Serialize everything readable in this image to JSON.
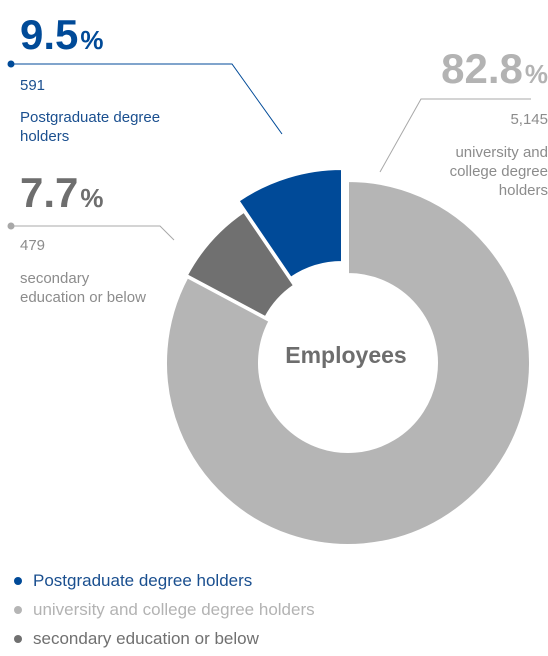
{
  "colors": {
    "postgraduate": "#004a98",
    "university": "#b5b5b5",
    "secondary": "#707070",
    "leader": "#a8a8a8",
    "center_text": "#6d6d6d",
    "blue_text": "#1a4f8f",
    "gray_text": "#8c8c8c",
    "dark_gray_text": "#6e6e6e"
  },
  "chart_data": {
    "type": "pie",
    "donut": true,
    "center_label": "Employees",
    "percent_symbol": "%",
    "slices": [
      {
        "label": "Postgraduate degree holders",
        "percent": "9.5",
        "count": "591",
        "value": 9.5
      },
      {
        "label": "university and college degree holders",
        "percent": "82.8",
        "count": "5,145",
        "value": 82.8
      },
      {
        "label": "secondary education or below",
        "percent": "7.7",
        "count": "479",
        "value": 7.7
      }
    ],
    "callouts": {
      "postgraduate": {
        "percent": "9.5",
        "count": "591",
        "line1": "Postgraduate degree",
        "line2": "holders"
      },
      "university": {
        "percent": "82.8",
        "count": "5,145",
        "line1": "university and",
        "line2": "college degree",
        "line3": "holders"
      },
      "secondary": {
        "percent": "7.7",
        "count": "479",
        "line1": "secondary",
        "line2": "education or below"
      }
    },
    "legend": [
      {
        "label": "Postgraduate degree holders"
      },
      {
        "label": "university and college degree holders"
      },
      {
        "label": "secondary education or below"
      }
    ]
  }
}
